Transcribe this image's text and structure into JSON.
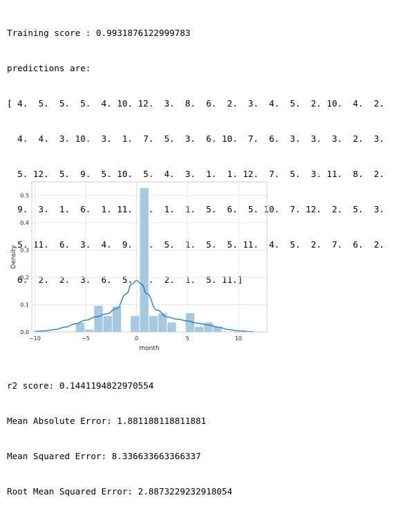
{
  "output": {
    "training_line": "Training score : 0.9931876122999783",
    "predictions_header": "predictions are:",
    "predictions_rows": [
      "[ 4.  5.  5.  5.  4. 10. 12.  3.  8.  6.  2.  3.  4.  5.  2. 10.  4.  2.",
      "  4.  4.  3. 10.  3.  1.  7.  5.  3.  6. 10.  7.  6.  3.  3.  3.  2.  3.",
      "  5. 12.  5.  9.  5. 10.  5.  4.  3.  1.  1. 12.  7.  5.  3. 11.  8.  2.",
      "  9.  3.  1.  6.  1. 11.  4.  1.  1.  5.  6.  5. 10.  7. 12.  2.  5.  3.",
      "  5. 11.  6.  3.  4.  9.  3.  5.  1.  5.  5. 11.  4.  5.  2.  7.  6.  2.",
      "  6.  2.  2.  3.  6.  5. 10.  2.  1.  5. 11.]"
    ],
    "r2_line": "r2 score: 0.1441194822970554",
    "mae_line": "Mean Absolute Error: 1.881188118811881",
    "mse_line": "Mean Squared Error: 8.336633663366337",
    "rmse_line": "Root Mean Squared Error: 2.8873229232918054"
  },
  "chart_data": {
    "type": "bar",
    "xlabel": "month",
    "ylabel": "Density",
    "xlim": [
      -10.3,
      12.8
    ],
    "ylim": [
      0,
      0.55
    ],
    "xticks": [
      "−10",
      "−5",
      "0",
      "5",
      "10"
    ],
    "xtick_values": [
      -10,
      -5,
      0,
      5,
      10
    ],
    "yticks": [
      "0.0",
      "0.1",
      "0.2",
      "0.3",
      "0.4",
      "0.5"
    ],
    "ytick_values": [
      0,
      0.1,
      0.2,
      0.3,
      0.4,
      0.5
    ],
    "bin_edges": [
      -6,
      -5.1,
      -4.2,
      -3.3,
      -2.4,
      -1.5,
      -0.6,
      0.3,
      1.2,
      2.1,
      3.0,
      3.9,
      4.8,
      5.7,
      6.6,
      7.5,
      8.4
    ],
    "bar_values": [
      0.035,
      0.01,
      0.097,
      0.06,
      0.095,
      0,
      0.06,
      0.528,
      0.06,
      0.07,
      0.036,
      0,
      0.07,
      0.02,
      0.036,
      0.02
    ],
    "kde_x": [
      -10,
      -9,
      -8,
      -7,
      -6,
      -5,
      -4,
      -3,
      -2,
      -1,
      -0.5,
      0,
      0.5,
      1,
      2,
      3,
      4,
      5,
      6,
      7,
      8,
      9,
      10,
      11.5
    ],
    "kde_y": [
      0.002,
      0.004,
      0.009,
      0.018,
      0.03,
      0.043,
      0.055,
      0.066,
      0.085,
      0.14,
      0.175,
      0.188,
      0.175,
      0.14,
      0.08,
      0.055,
      0.047,
      0.04,
      0.032,
      0.026,
      0.018,
      0.009,
      0.004,
      0.001
    ],
    "grid": true,
    "colors": {
      "bar": "#a6c8e0",
      "bar_edge": "#ffffff",
      "kde": "#2f7bb6",
      "grid": "#e6e6e6",
      "frame": "#cccccc"
    }
  }
}
